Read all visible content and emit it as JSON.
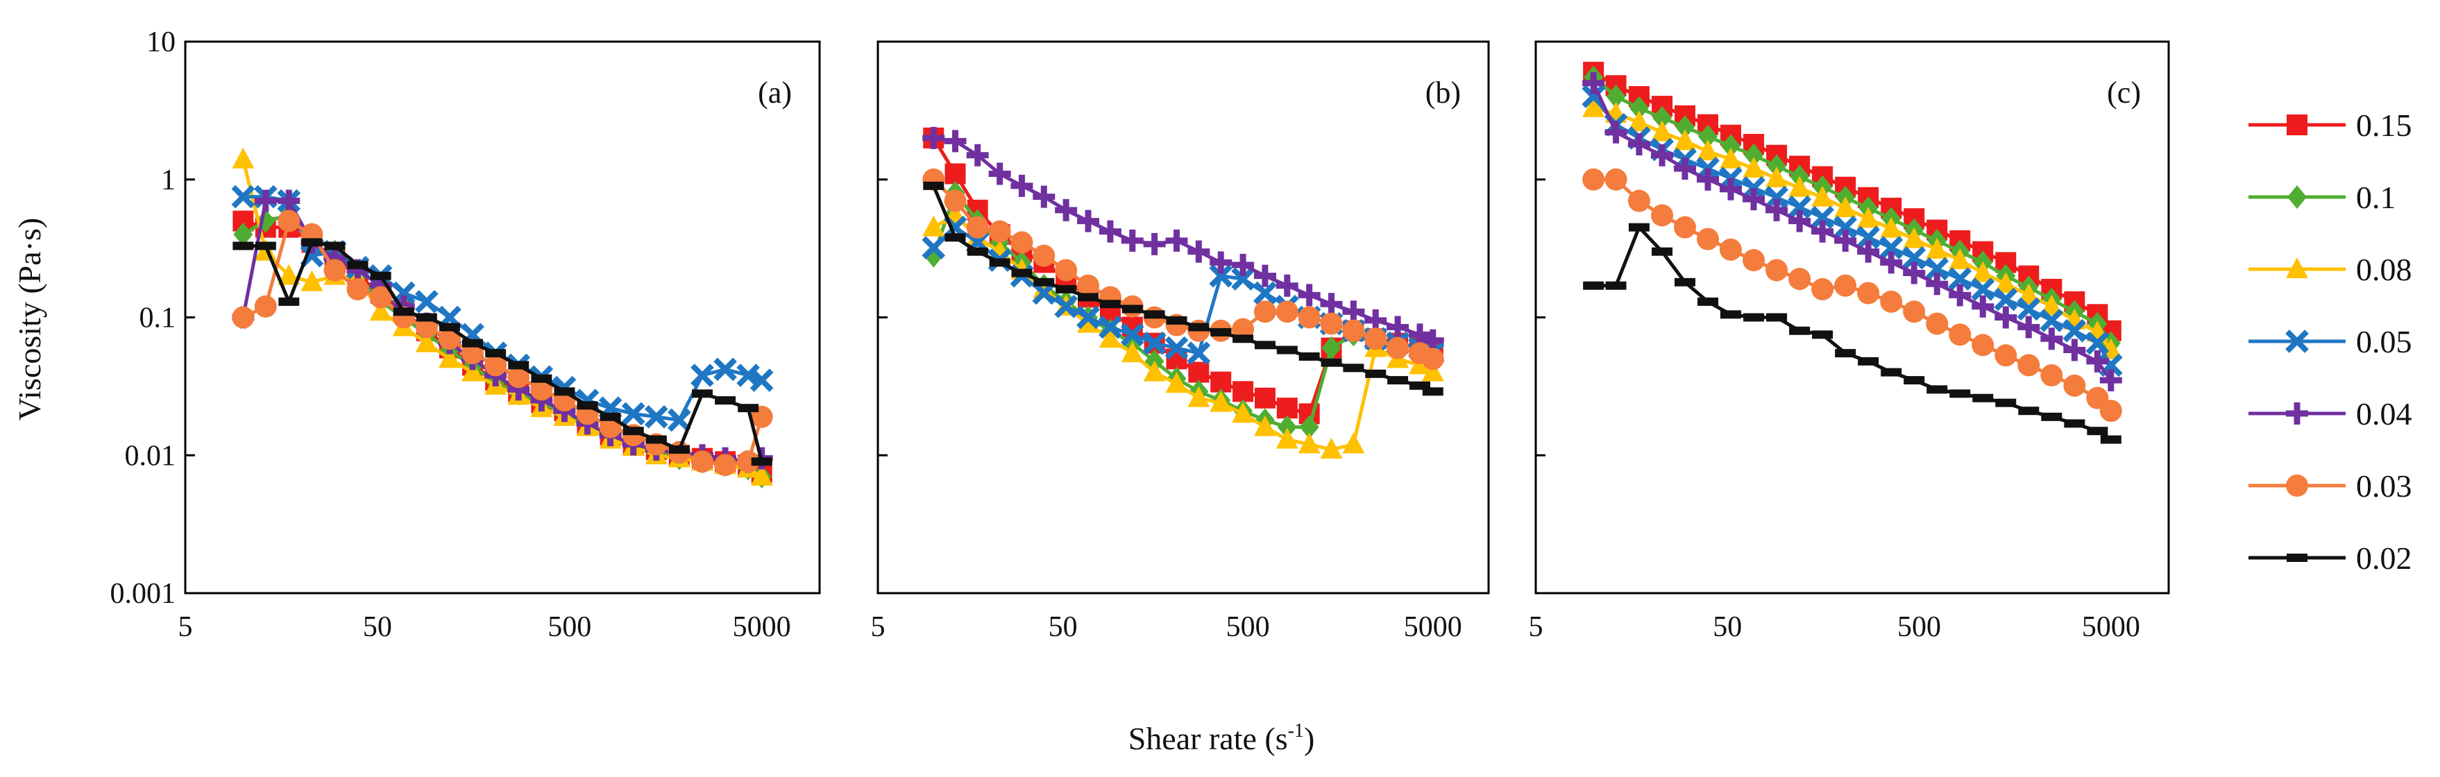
{
  "chart_data": {
    "type": "line",
    "xlabel": "Shear rate (s",
    "xlabel_sup": "-1",
    "xlabel_close": ")",
    "ylabel": "Viscosity (Pa·s)",
    "x_scale": "log",
    "y_scale": "log",
    "xlim": [
      5,
      10000
    ],
    "ylim": [
      0.001,
      10
    ],
    "x_ticks": [
      5,
      50,
      500,
      5000
    ],
    "x_tick_labels": [
      "5",
      "50",
      "500",
      "5000"
    ],
    "y_ticks": [
      0.001,
      0.01,
      0.1,
      1,
      10
    ],
    "y_tick_labels": [
      "0.001",
      "0.01",
      "0.1",
      "1",
      "10"
    ],
    "legend_position": "right",
    "series_styles": [
      {
        "name": "0.15",
        "color": "#ee1c1c",
        "marker": "square"
      },
      {
        "name": "0.1",
        "color": "#4fae32",
        "marker": "diamond"
      },
      {
        "name": "0.08",
        "color": "#ffc000",
        "marker": "triangle"
      },
      {
        "name": "0.05",
        "color": "#1f77c4",
        "marker": "x"
      },
      {
        "name": "0.04",
        "color": "#7030a0",
        "marker": "plus"
      },
      {
        "name": "0.03",
        "color": "#f47c3c",
        "marker": "circle"
      },
      {
        "name": "0.02",
        "color": "#111111",
        "marker": "dash"
      }
    ],
    "panels": [
      {
        "tag": "(a)",
        "x": [
          10,
          13.1,
          17.3,
          22.8,
          30,
          39.5,
          52,
          68.5,
          90.2,
          118.8,
          156.4,
          206,
          271.2,
          357.2,
          470.3,
          619.3,
          815.5,
          1073.8,
          1414,
          1861.9,
          2451.7,
          3228.4,
          4251.1,
          5000
        ],
        "series": [
          {
            "name": "0.15",
            "values": [
              0.5,
              0.45,
              0.45,
              0.35,
              0.27,
              0.2,
              0.15,
              0.11,
              0.08,
              0.06,
              0.045,
              0.035,
              0.029,
              0.024,
              0.021,
              0.017,
              0.014,
              0.012,
              0.011,
              0.01,
              0.0095,
              0.009,
              0.0085,
              0.0075
            ]
          },
          {
            "name": "0.1",
            "values": [
              0.4,
              0.5,
              0.55,
              0.4,
              0.3,
              0.2,
              0.13,
              0.1,
              0.075,
              0.058,
              0.044,
              0.034,
              0.028,
              0.024,
              0.02,
              0.017,
              0.014,
              0.012,
              0.0105,
              0.0095,
              0.009,
              0.0085,
              0.008,
              0.007
            ]
          },
          {
            "name": "0.08",
            "values": [
              1.4,
              0.3,
              0.2,
              0.18,
              0.2,
              0.19,
              0.11,
              0.085,
              0.065,
              0.05,
              0.04,
              0.032,
              0.027,
              0.022,
              0.019,
              0.016,
              0.013,
              0.0115,
              0.01,
              0.0095,
              0.009,
              0.0085,
              0.008,
              0.007
            ]
          },
          {
            "name": "0.05",
            "values": [
              0.75,
              0.75,
              0.7,
              0.28,
              0.3,
              0.23,
              0.2,
              0.15,
              0.13,
              0.1,
              0.075,
              0.055,
              0.045,
              0.037,
              0.031,
              0.025,
              0.022,
              0.02,
              0.019,
              0.018,
              0.038,
              0.042,
              0.038,
              0.035
            ]
          },
          {
            "name": "0.04",
            "values": [
              0.1,
              0.7,
              0.7,
              0.35,
              0.27,
              0.22,
              0.17,
              0.12,
              0.09,
              0.065,
              0.05,
              0.038,
              0.03,
              0.025,
              0.021,
              0.017,
              0.014,
              0.012,
              0.011,
              0.0105,
              0.01,
              0.0095,
              0.009,
              0.0095
            ]
          },
          {
            "name": "0.03",
            "values": [
              0.1,
              0.12,
              0.5,
              0.4,
              0.22,
              0.16,
              0.14,
              0.1,
              0.085,
              0.07,
              0.055,
              0.045,
              0.037,
              0.03,
              0.025,
              0.02,
              0.016,
              0.014,
              0.012,
              0.0105,
              0.009,
              0.0085,
              0.009,
              0.019
            ]
          },
          {
            "name": "0.02",
            "values": [
              0.33,
              0.33,
              0.13,
              0.35,
              0.33,
              0.24,
              0.2,
              0.11,
              0.1,
              0.085,
              0.065,
              0.055,
              0.045,
              0.036,
              0.029,
              0.023,
              0.019,
              0.015,
              0.013,
              0.011,
              0.028,
              0.025,
              0.022,
              0.009
            ]
          }
        ]
      },
      {
        "tag": "(b)",
        "x": [
          10,
          13.1,
          17.3,
          22.8,
          30,
          39.5,
          52,
          68.5,
          90.2,
          118.8,
          156.4,
          206,
          271.2,
          357.2,
          470.3,
          619.3,
          815.5,
          1073.8,
          1414,
          1861.9,
          2451.7,
          3228.4,
          4251.1,
          5000
        ],
        "series": [
          {
            "name": "0.15",
            "values": [
              2,
              1.1,
              0.6,
              0.4,
              0.3,
              0.25,
              0.19,
              0.14,
              0.11,
              0.085,
              0.065,
              0.05,
              0.04,
              0.034,
              0.029,
              0.026,
              0.022,
              0.02,
              0.06,
              0.08,
              0.07,
              0.065,
              0.06,
              0.058
            ]
          },
          {
            "name": "0.1",
            "values": [
              0.28,
              0.8,
              0.5,
              0.35,
              0.25,
              0.17,
              0.13,
              0.1,
              0.08,
              0.065,
              0.048,
              0.036,
              0.029,
              0.025,
              0.021,
              0.018,
              0.016,
              0.016,
              0.06,
              0.075,
              0.065,
              0.06,
              0.055,
              0.05
            ]
          },
          {
            "name": "0.08",
            "values": [
              0.45,
              0.55,
              0.38,
              0.3,
              0.22,
              0.16,
              0.12,
              0.09,
              0.07,
              0.055,
              0.04,
              0.033,
              0.026,
              0.024,
              0.02,
              0.016,
              0.013,
              0.012,
              0.011,
              0.012,
              0.06,
              0.05,
              0.045,
              0.04
            ]
          },
          {
            "name": "0.05",
            "values": [
              0.32,
              0.45,
              0.35,
              0.26,
              0.2,
              0.15,
              0.12,
              0.1,
              0.085,
              0.075,
              0.065,
              0.06,
              0.055,
              0.2,
              0.19,
              0.15,
              0.12,
              0.1,
              0.09,
              0.08,
              0.07,
              0.065,
              0.06,
              0.055
            ]
          },
          {
            "name": "0.04",
            "values": [
              2,
              1.9,
              1.5,
              1.1,
              0.9,
              0.75,
              0.6,
              0.5,
              0.42,
              0.36,
              0.34,
              0.36,
              0.3,
              0.25,
              0.24,
              0.2,
              0.17,
              0.145,
              0.125,
              0.11,
              0.095,
              0.085,
              0.075,
              0.068
            ]
          },
          {
            "name": "0.03",
            "values": [
              1,
              0.7,
              0.45,
              0.42,
              0.35,
              0.28,
              0.22,
              0.17,
              0.14,
              0.12,
              0.1,
              0.088,
              0.08,
              0.08,
              0.082,
              0.11,
              0.11,
              0.1,
              0.09,
              0.08,
              0.07,
              0.06,
              0.055,
              0.05
            ]
          },
          {
            "name": "0.02",
            "values": [
              0.9,
              0.38,
              0.3,
              0.25,
              0.21,
              0.18,
              0.16,
              0.14,
              0.125,
              0.115,
              0.105,
              0.095,
              0.085,
              0.078,
              0.07,
              0.063,
              0.058,
              0.052,
              0.047,
              0.043,
              0.039,
              0.035,
              0.032,
              0.029
            ]
          }
        ]
      },
      {
        "tag": "(c)",
        "x": [
          10,
          13.1,
          17.3,
          22.8,
          30,
          39.5,
          52,
          68.5,
          90.2,
          118.8,
          156.4,
          206,
          271.2,
          357.2,
          470.3,
          619.3,
          815.5,
          1073.8,
          1414,
          1861.9,
          2451.7,
          3228.4,
          4251.1,
          5000
        ],
        "series": [
          {
            "name": "0.15",
            "values": [
              6,
              4.8,
              4,
              3.4,
              2.9,
              2.5,
              2.1,
              1.8,
              1.5,
              1.25,
              1.05,
              0.88,
              0.74,
              0.62,
              0.52,
              0.43,
              0.36,
              0.3,
              0.25,
              0.2,
              0.16,
              0.13,
              0.105,
              0.08
            ]
          },
          {
            "name": "0.1",
            "values": [
              5.5,
              4,
              3.3,
              2.8,
              2.4,
              2.05,
              1.75,
              1.5,
              1.25,
              1.05,
              0.88,
              0.74,
              0.62,
              0.52,
              0.43,
              0.36,
              0.3,
              0.25,
              0.2,
              0.165,
              0.135,
              0.11,
              0.09,
              0.065
            ]
          },
          {
            "name": "0.08",
            "values": [
              3.3,
              3,
              2.6,
              2.2,
              1.9,
              1.6,
              1.4,
              1.2,
              1.02,
              0.87,
              0.74,
              0.62,
              0.52,
              0.44,
              0.37,
              0.31,
              0.26,
              0.21,
              0.175,
              0.145,
              0.12,
              0.095,
              0.078,
              0.058
            ]
          },
          {
            "name": "0.05",
            "values": [
              4,
              2.5,
              2,
              1.65,
              1.4,
              1.2,
              1.02,
              0.87,
              0.74,
              0.63,
              0.53,
              0.45,
              0.38,
              0.32,
              0.27,
              0.225,
              0.19,
              0.16,
              0.135,
              0.115,
              0.095,
              0.08,
              0.065,
              0.045
            ]
          },
          {
            "name": "0.04",
            "values": [
              5,
              2.2,
              1.8,
              1.5,
              1.2,
              1,
              0.85,
              0.72,
              0.6,
              0.5,
              0.42,
              0.36,
              0.3,
              0.25,
              0.21,
              0.175,
              0.145,
              0.12,
              0.1,
              0.085,
              0.07,
              0.058,
              0.048,
              0.035
            ]
          },
          {
            "name": "0.03",
            "values": [
              1,
              1,
              0.7,
              0.55,
              0.45,
              0.37,
              0.31,
              0.26,
              0.22,
              0.19,
              0.16,
              0.17,
              0.15,
              0.13,
              0.11,
              0.09,
              0.075,
              0.063,
              0.053,
              0.045,
              0.038,
              0.032,
              0.026,
              0.021
            ]
          },
          {
            "name": "0.02",
            "values": [
              0.17,
              0.17,
              0.45,
              0.3,
              0.18,
              0.13,
              0.105,
              0.1,
              0.1,
              0.08,
              0.075,
              0.055,
              0.048,
              0.04,
              0.035,
              0.03,
              0.028,
              0.026,
              0.024,
              0.021,
              0.019,
              0.017,
              0.015,
              0.013
            ]
          }
        ]
      }
    ]
  }
}
